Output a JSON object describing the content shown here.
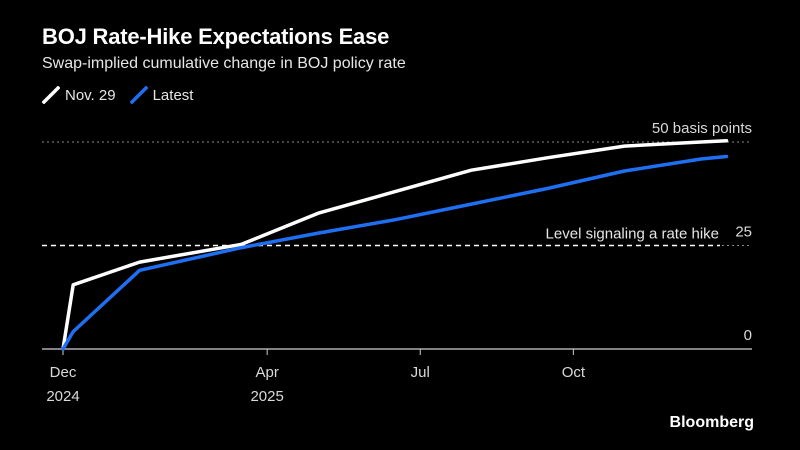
{
  "chart_data": {
    "type": "line",
    "title": "BOJ Rate-Hike Expectations Ease",
    "subtitle": "Swap-implied cumulative change in BOJ policy rate",
    "xlabel": "",
    "ylabel": "basis points",
    "ylim": [
      0,
      50
    ],
    "y_ticks": [
      {
        "value": 0,
        "label": "0"
      },
      {
        "value": 25,
        "label": "25"
      },
      {
        "value": 50,
        "label": "50 basis points"
      }
    ],
    "x_ticks": [
      {
        "month": 0,
        "line1": "Dec",
        "line2": "2024"
      },
      {
        "month": 4,
        "line1": "Apr",
        "line2": "2025"
      },
      {
        "month": 7,
        "line1": "Jul",
        "line2": ""
      },
      {
        "month": 10,
        "line1": "Oct",
        "line2": ""
      }
    ],
    "xlim": [
      0,
      13.5
    ],
    "reference_line": {
      "value": 25,
      "label": "Level signaling a rate hike"
    },
    "series": [
      {
        "name": "Nov. 29",
        "color": "#ffffff",
        "x": [
          0,
          0.2,
          1.5,
          3.5,
          5.0,
          6.5,
          8.0,
          9.5,
          11.0,
          12.5,
          13.0
        ],
        "values": [
          0,
          15.5,
          21,
          25.3,
          32.8,
          38,
          43.2,
          46.2,
          49,
          50,
          50.3
        ]
      },
      {
        "name": "Latest",
        "color": "#1f6ff2",
        "x": [
          0,
          0.2,
          1.5,
          3.5,
          5.0,
          6.5,
          8.0,
          9.5,
          11.0,
          12.5,
          13.0
        ],
        "values": [
          0,
          4.2,
          19,
          24.5,
          28,
          31.2,
          35,
          38.8,
          43,
          45.9,
          46.5
        ]
      }
    ]
  },
  "source": "Bloomberg"
}
